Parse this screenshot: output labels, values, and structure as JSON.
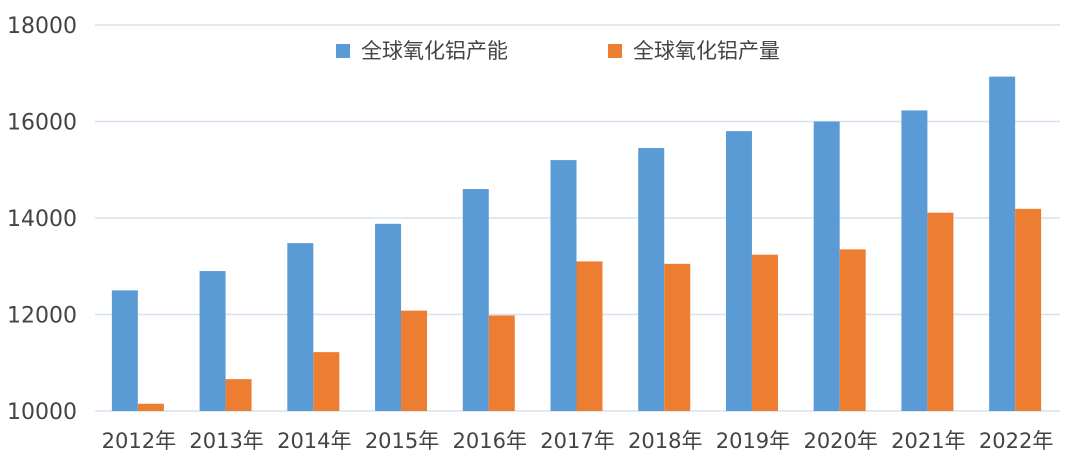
{
  "chart_data": {
    "type": "bar",
    "categories": [
      "2012年",
      "2013年",
      "2014年",
      "2015年",
      "2016年",
      "2017年",
      "2018年",
      "2019年",
      "2020年",
      "2021年",
      "2022年"
    ],
    "series": [
      {
        "name": "全球氧化铝产能",
        "color": "#5b9bd5",
        "values": [
          12500,
          12900,
          13480,
          13880,
          14600,
          15200,
          15450,
          15800,
          16000,
          16230,
          16930
        ]
      },
      {
        "name": "全球氧化铝产量",
        "color": "#ed7d31",
        "values": [
          10150,
          10660,
          11220,
          12080,
          11980,
          13100,
          13050,
          13240,
          13350,
          14110,
          14190
        ]
      }
    ],
    "ylim": [
      10000,
      18000
    ],
    "yticks": [
      "10000",
      "12000",
      "14000",
      "16000",
      "18000"
    ],
    "grid": true,
    "legend_position": "top-center"
  }
}
